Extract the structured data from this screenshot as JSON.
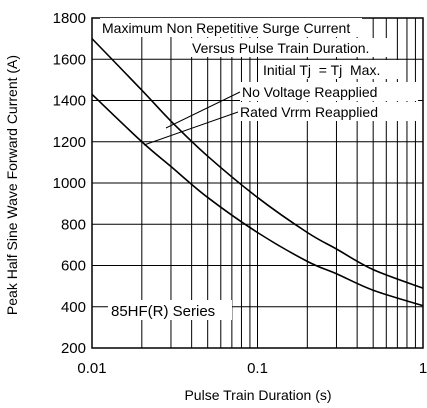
{
  "chart_data": {
    "type": "line",
    "title": "",
    "xlabel": "Pulse Train Duration (s)",
    "ylabel": "Peak Half Sine Wave Forward Current (A)",
    "x_scale": "log",
    "xlim": [
      0.01,
      1
    ],
    "ylim": [
      200,
      1800
    ],
    "x_ticks": [
      {
        "value": 0.01,
        "label": "0.01"
      },
      {
        "value": 0.1,
        "label": "0.1"
      },
      {
        "value": 1,
        "label": "1"
      }
    ],
    "y_ticks": [
      {
        "value": 200,
        "label": "200"
      },
      {
        "value": 400,
        "label": "400"
      },
      {
        "value": 600,
        "label": "600"
      },
      {
        "value": 800,
        "label": "800"
      },
      {
        "value": 1000,
        "label": "1000"
      },
      {
        "value": 1200,
        "label": "1200"
      },
      {
        "value": 1400,
        "label": "1400"
      },
      {
        "value": 1600,
        "label": "1600"
      },
      {
        "value": 1800,
        "label": "1800"
      }
    ],
    "grid": true,
    "legend": "none",
    "annotations": [
      "Maximum Non Repetitive Surge Current",
      "Versus Pulse Train Duration.",
      "Initial Tj  = Tj  Max.",
      "No Voltage Reapplied",
      "Rated Vrrm Reapplied",
      "85HF(R) Series"
    ],
    "series": [
      {
        "label": "No Voltage Reapplied",
        "color": "#000000",
        "points": [
          [
            0.01,
            1700
          ],
          [
            0.02,
            1450
          ],
          [
            0.03,
            1300
          ],
          [
            0.05,
            1130
          ],
          [
            0.1,
            930
          ],
          [
            0.2,
            760
          ],
          [
            0.3,
            680
          ],
          [
            0.5,
            580
          ],
          [
            1,
            490
          ]
        ]
      },
      {
        "label": "Rated Vrrm Reapplied",
        "color": "#000000",
        "points": [
          [
            0.01,
            1430
          ],
          [
            0.02,
            1200
          ],
          [
            0.03,
            1080
          ],
          [
            0.05,
            930
          ],
          [
            0.1,
            760
          ],
          [
            0.2,
            620
          ],
          [
            0.3,
            560
          ],
          [
            0.5,
            480
          ],
          [
            1,
            405
          ]
        ]
      }
    ]
  }
}
